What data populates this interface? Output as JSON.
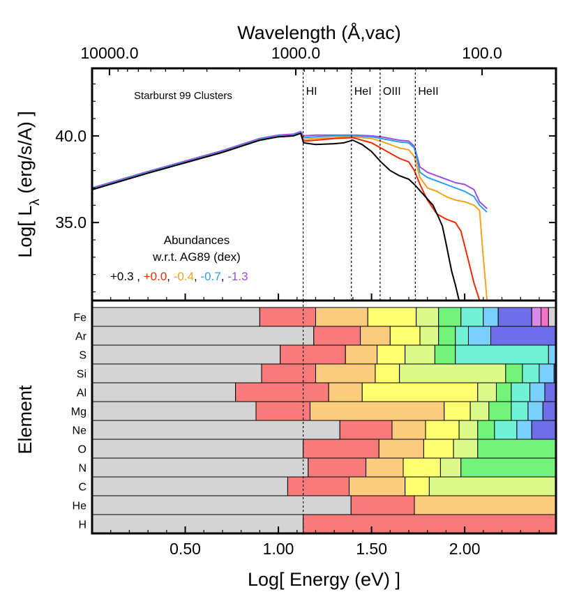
{
  "chart_data": [
    {
      "type": "line",
      "panel": "top",
      "top_axis_label": "Wavelength (Å,vac)",
      "top_tick_labels": [
        "10000.0",
        "1000.0",
        "100.0"
      ],
      "top_tick_values": [
        10000,
        1000,
        100
      ],
      "ylabel_prefix": "Log[ L",
      "ylabel_sub": "λ",
      "ylabel_suffix": " (erg/s/A) ]",
      "y_tick_labels": [
        "40.0",
        "35.0"
      ],
      "y_tick_values": [
        40,
        35
      ],
      "ylim": [
        30.5,
        43.9
      ],
      "xlim": [
        0.0,
        2.49
      ],
      "annotation": "Starburst 99 Clusters",
      "edges": [
        {
          "label": "HI",
          "x": 1.133
        },
        {
          "label": "HeI",
          "x": 1.392
        },
        {
          "label": "OIII",
          "x": 1.546
        },
        {
          "label": "HeII",
          "x": 1.735
        }
      ],
      "legend": {
        "title_line1": "Abundances",
        "title_line2": "w.r.t. AG89 (dex)",
        "separator": ",",
        "entries": [
          {
            "label": "+0.3",
            "color": "#000000"
          },
          {
            "label": "+0.0",
            "color": "#ee2a00"
          },
          {
            "label": "-0.4",
            "color": "#f5a11b"
          },
          {
            "label": "-0.7",
            "color": "#2b9ee8"
          },
          {
            "label": "-1.3",
            "color": "#9b4de0"
          }
        ]
      },
      "series": [
        {
          "name": "+0.3",
          "color": "#000000",
          "points": [
            [
              0.0,
              36.9
            ],
            [
              0.3,
              37.85
            ],
            [
              0.5,
              38.45
            ],
            [
              0.7,
              39.05
            ],
            [
              0.9,
              39.75
            ],
            [
              1.0,
              39.95
            ],
            [
              1.08,
              40.0
            ],
            [
              1.12,
              40.15
            ],
            [
              1.135,
              39.6
            ],
            [
              1.2,
              39.5
            ],
            [
              1.3,
              39.55
            ],
            [
              1.35,
              39.6
            ],
            [
              1.4,
              39.75
            ],
            [
              1.45,
              39.5
            ],
            [
              1.5,
              39.1
            ],
            [
              1.55,
              38.5
            ],
            [
              1.6,
              38.0
            ],
            [
              1.65,
              37.7
            ],
            [
              1.7,
              37.5
            ],
            [
              1.73,
              37.2
            ],
            [
              1.78,
              36.6
            ],
            [
              1.83,
              36.0
            ],
            [
              1.86,
              35.3
            ],
            [
              1.88,
              34.8
            ],
            [
              1.9,
              33.8
            ],
            [
              1.93,
              32.2
            ],
            [
              1.95,
              31.4
            ],
            [
              1.97,
              30.5
            ]
          ]
        },
        {
          "name": "+0.0",
          "color": "#ee2a00",
          "points": [
            [
              0.0,
              36.9
            ],
            [
              0.3,
              37.85
            ],
            [
              0.5,
              38.45
            ],
            [
              0.7,
              39.05
            ],
            [
              0.9,
              39.75
            ],
            [
              1.0,
              39.95
            ],
            [
              1.08,
              40.0
            ],
            [
              1.12,
              40.15
            ],
            [
              1.135,
              39.7
            ],
            [
              1.2,
              39.75
            ],
            [
              1.3,
              39.85
            ],
            [
              1.4,
              39.9
            ],
            [
              1.5,
              39.6
            ],
            [
              1.55,
              39.3
            ],
            [
              1.6,
              39.0
            ],
            [
              1.65,
              38.7
            ],
            [
              1.7,
              38.5
            ],
            [
              1.73,
              38.0
            ],
            [
              1.76,
              37.2
            ],
            [
              1.8,
              36.3
            ],
            [
              1.85,
              35.5
            ],
            [
              1.9,
              35.2
            ],
            [
              1.95,
              35.0
            ],
            [
              1.98,
              34.5
            ],
            [
              2.02,
              32.8
            ],
            [
              2.05,
              31.5
            ],
            [
              2.08,
              30.5
            ]
          ]
        },
        {
          "name": "-0.4",
          "color": "#f5a11b",
          "points": [
            [
              0.0,
              36.9
            ],
            [
              0.3,
              37.85
            ],
            [
              0.5,
              38.45
            ],
            [
              0.7,
              39.05
            ],
            [
              0.9,
              39.75
            ],
            [
              1.0,
              39.95
            ],
            [
              1.08,
              40.0
            ],
            [
              1.12,
              40.15
            ],
            [
              1.135,
              39.8
            ],
            [
              1.2,
              39.85
            ],
            [
              1.3,
              39.9
            ],
            [
              1.4,
              39.95
            ],
            [
              1.5,
              39.85
            ],
            [
              1.55,
              39.7
            ],
            [
              1.6,
              39.5
            ],
            [
              1.65,
              39.3
            ],
            [
              1.7,
              39.2
            ],
            [
              1.73,
              38.8
            ],
            [
              1.76,
              37.6
            ],
            [
              1.8,
              37.0
            ],
            [
              1.85,
              36.8
            ],
            [
              1.9,
              36.5
            ],
            [
              1.95,
              36.3
            ],
            [
              2.0,
              36.2
            ],
            [
              2.05,
              36.0
            ],
            [
              2.08,
              35.7
            ],
            [
              2.1,
              33.0
            ],
            [
              2.12,
              30.5
            ]
          ]
        },
        {
          "name": "-0.7",
          "color": "#2b9ee8",
          "points": [
            [
              0.0,
              36.95
            ],
            [
              0.3,
              37.9
            ],
            [
              0.5,
              38.5
            ],
            [
              0.7,
              39.1
            ],
            [
              0.9,
              39.8
            ],
            [
              1.0,
              40.0
            ],
            [
              1.08,
              40.05
            ],
            [
              1.12,
              40.2
            ],
            [
              1.135,
              39.9
            ],
            [
              1.2,
              39.95
            ],
            [
              1.3,
              40.0
            ],
            [
              1.4,
              40.0
            ],
            [
              1.5,
              39.95
            ],
            [
              1.55,
              39.85
            ],
            [
              1.6,
              39.75
            ],
            [
              1.65,
              39.65
            ],
            [
              1.7,
              39.6
            ],
            [
              1.73,
              39.3
            ],
            [
              1.76,
              37.9
            ],
            [
              1.8,
              37.6
            ],
            [
              1.85,
              37.4
            ],
            [
              1.9,
              37.2
            ],
            [
              1.95,
              37.0
            ],
            [
              2.0,
              36.8
            ],
            [
              2.05,
              36.5
            ],
            [
              2.08,
              36.0
            ],
            [
              2.12,
              35.6
            ]
          ]
        },
        {
          "name": "-1.3",
          "color": "#9b4de0",
          "points": [
            [
              0.0,
              37.0
            ],
            [
              0.3,
              37.95
            ],
            [
              0.5,
              38.55
            ],
            [
              0.7,
              39.15
            ],
            [
              0.9,
              39.85
            ],
            [
              1.0,
              40.05
            ],
            [
              1.08,
              40.1
            ],
            [
              1.12,
              40.25
            ],
            [
              1.135,
              40.0
            ],
            [
              1.2,
              40.05
            ],
            [
              1.3,
              40.05
            ],
            [
              1.4,
              40.05
            ],
            [
              1.5,
              40.0
            ],
            [
              1.55,
              39.95
            ],
            [
              1.6,
              39.85
            ],
            [
              1.65,
              39.75
            ],
            [
              1.7,
              39.7
            ],
            [
              1.73,
              39.4
            ],
            [
              1.76,
              38.2
            ],
            [
              1.8,
              37.9
            ],
            [
              1.85,
              37.7
            ],
            [
              1.9,
              37.5
            ],
            [
              1.95,
              37.3
            ],
            [
              2.0,
              37.2
            ],
            [
              2.05,
              36.9
            ],
            [
              2.08,
              36.2
            ],
            [
              2.12,
              35.8
            ]
          ]
        }
      ]
    },
    {
      "type": "bar",
      "orientation": "horizontal-stacked",
      "panel": "bottom",
      "xlabel": "Log[ Energy (eV) ]",
      "ylabel": "Element",
      "x_tick_labels": [
        "0.50",
        "1.00",
        "1.50",
        "2.00"
      ],
      "x_tick_values": [
        0.5,
        1.0,
        1.5,
        2.0
      ],
      "xlim": [
        0.0,
        2.49
      ],
      "stage_colors": [
        "#d4d4d4",
        "#f97a7a",
        "#fccc7e",
        "#ffff72",
        "#dcf98a",
        "#72f47a",
        "#72f2d4",
        "#7ad0fc",
        "#6e6ee8",
        "#d88ae8",
        "#f472c4"
      ],
      "elements": [
        {
          "name": "Fe",
          "edges": [
            0.9,
            1.2,
            1.48,
            1.74,
            1.86,
            1.98,
            2.1,
            2.18,
            2.36,
            2.41,
            2.45,
            2.49
          ]
        },
        {
          "name": "Ar",
          "edges": [
            1.19,
            1.44,
            1.6,
            1.76,
            1.86,
            1.95,
            2.02,
            2.14,
            2.49
          ]
        },
        {
          "name": "S",
          "edges": [
            1.01,
            1.36,
            1.53,
            1.68,
            1.84,
            1.95,
            2.45,
            2.49
          ]
        },
        {
          "name": "Si",
          "edges": [
            0.91,
            1.2,
            1.52,
            1.65,
            2.22,
            2.31,
            2.4,
            2.48,
            2.49
          ]
        },
        {
          "name": "Al",
          "edges": [
            0.77,
            1.27,
            1.45,
            2.07,
            2.17,
            2.25,
            2.35,
            2.43,
            2.49
          ]
        },
        {
          "name": "Mg",
          "edges": [
            0.88,
            1.17,
            1.89,
            2.03,
            2.13,
            2.25,
            2.34,
            2.42,
            2.49
          ]
        },
        {
          "name": "Ne",
          "edges": [
            1.33,
            1.61,
            1.79,
            1.97,
            2.07,
            2.16,
            2.28,
            2.36,
            2.49
          ]
        },
        {
          "name": "O",
          "edges": [
            1.133,
            1.54,
            1.78,
            1.94,
            2.07,
            2.49
          ]
        },
        {
          "name": "N",
          "edges": [
            1.16,
            1.47,
            1.67,
            1.87,
            1.98,
            2.49
          ]
        },
        {
          "name": "C",
          "edges": [
            1.05,
            1.38,
            1.68,
            1.81,
            2.49
          ]
        },
        {
          "name": "He",
          "edges": [
            1.39,
            1.73,
            2.49
          ]
        },
        {
          "name": "H",
          "edges": [
            1.133,
            2.49
          ]
        }
      ]
    }
  ]
}
